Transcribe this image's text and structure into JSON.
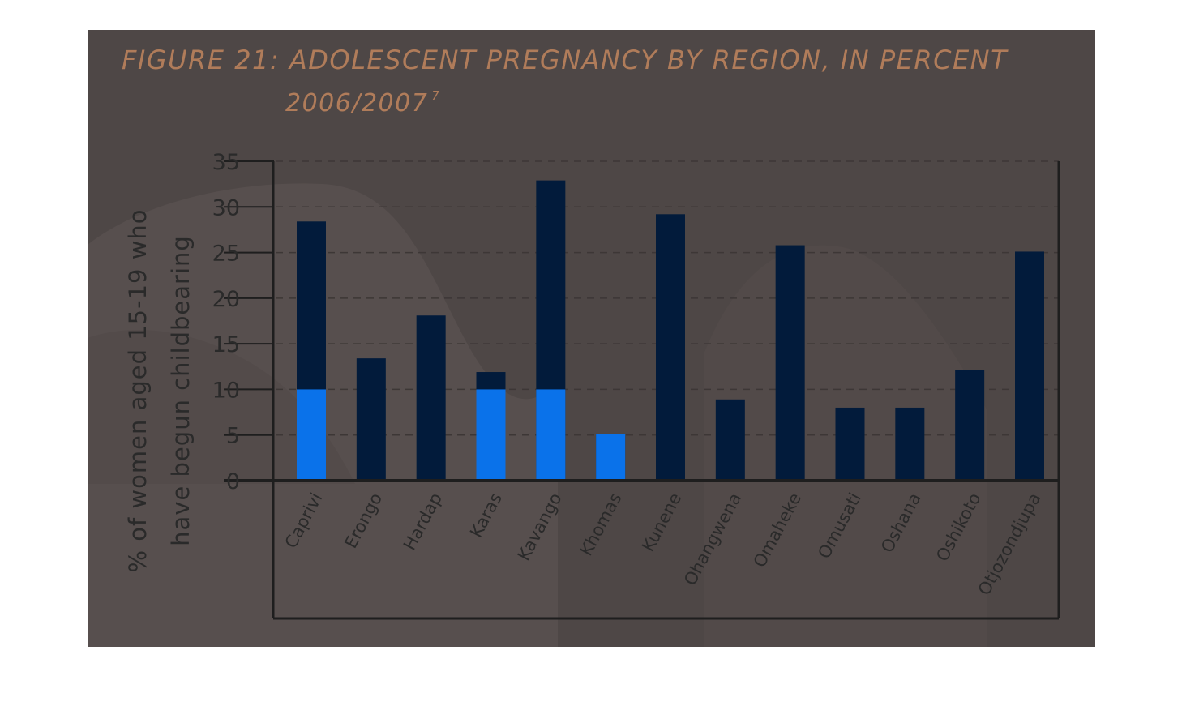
{
  "chart_data": {
    "type": "bar",
    "title": "FIGURE 21: ADOLESCENT PREGNANCY BY REGION, IN PERCENT",
    "subtitle": "2006/2007",
    "subtitle_footnote": "7",
    "ylabel_lines": [
      "% of women aged 15-19 who",
      "have begun childbearing"
    ],
    "xlabel": "",
    "categories": [
      "Caprivi",
      "Erongo",
      "Hardap",
      "Karas",
      "Kavango",
      "Khomas",
      "Kunene",
      "Ohangwena",
      "Omaheke",
      "Omusati",
      "Oshana",
      "Oshikoto",
      "Otjozondjupa"
    ],
    "values": [
      28.4,
      13.4,
      18.1,
      11.9,
      32.9,
      5.1,
      29.2,
      8.9,
      25.8,
      8.0,
      8.0,
      12.1,
      25.1
    ],
    "ylim": [
      0,
      35
    ],
    "yticks": [
      0,
      5,
      10,
      15,
      20,
      25,
      30,
      35
    ],
    "grid": true,
    "legend": "none",
    "colors": {
      "bar": "#021b3b",
      "bar_highlight": "#0a72ea",
      "title": "#b07c5a",
      "panel": "#4e4746",
      "axis": "#1e1e1e",
      "text": "#2a2a2a"
    }
  }
}
